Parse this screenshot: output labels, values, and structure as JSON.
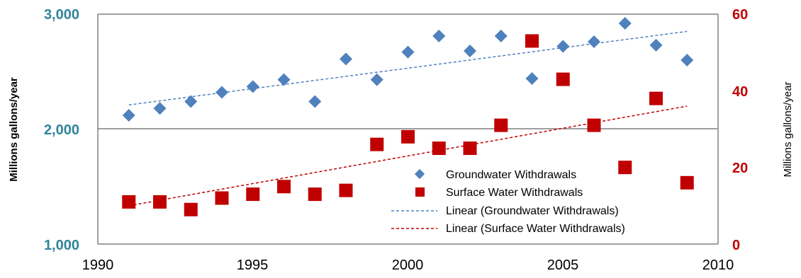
{
  "colors": {
    "groundwater": "#4F81BD",
    "surface": "#C00000",
    "left_axis_text": "#31849B",
    "right_axis_text": "#C00000",
    "gridline": "#7F7F7F",
    "axis": "#808080"
  },
  "chart_data": {
    "type": "scatter",
    "xlabel": "",
    "ylabel_left": "Millions gallons/year",
    "ylabel_right": "Millions gallons/year",
    "xlim": [
      1990,
      2010
    ],
    "x_ticks": [
      1990,
      1995,
      2000,
      2005,
      2010
    ],
    "x_tick_labels": [
      "1990",
      "1995",
      "2000",
      "2005",
      "2010"
    ],
    "ylim_left": [
      1000,
      3000
    ],
    "y_left_ticks": [
      1000,
      2000,
      3000
    ],
    "y_left_tick_labels": [
      "1,000",
      "2,000",
      "3,000"
    ],
    "ylim_right": [
      0,
      60
    ],
    "y_right_ticks": [
      0,
      20,
      40,
      60
    ],
    "y_right_tick_labels": [
      "0",
      "20",
      "40",
      "60"
    ],
    "grid": "horizontal major gridline at 2,000",
    "legend_position": "lower-right inside plot",
    "series": [
      {
        "name": "Groundwater Withdrawals",
        "axis": "left",
        "marker": "diamond",
        "x": [
          1991,
          1992,
          1993,
          1994,
          1995,
          1996,
          1997,
          1998,
          1999,
          2000,
          2001,
          2002,
          2003,
          2004,
          2005,
          2006,
          2007,
          2008,
          2009
        ],
        "y": [
          2120,
          2180,
          2240,
          2320,
          2370,
          2430,
          2240,
          2610,
          2430,
          2670,
          2810,
          2680,
          2810,
          2440,
          2720,
          2760,
          2920,
          2730,
          2600
        ]
      },
      {
        "name": "Surface Water Withdrawals",
        "axis": "right",
        "marker": "square",
        "x": [
          1991,
          1992,
          1993,
          1994,
          1995,
          1996,
          1997,
          1998,
          1999,
          2000,
          2001,
          2002,
          2003,
          2004,
          2005,
          2006,
          2007,
          2008,
          2009
        ],
        "y": [
          11,
          11,
          9,
          12,
          13,
          15,
          13,
          14,
          26,
          28,
          25,
          25,
          31,
          53,
          43,
          31,
          20,
          38,
          16
        ]
      }
    ],
    "trendlines": [
      {
        "name": "Linear (Groundwater Withdrawals)",
        "axis": "left",
        "x": [
          1991,
          2009
        ],
        "y": [
          2210,
          2850
        ]
      },
      {
        "name": "Linear (Surface Water Withdrawals)",
        "axis": "right",
        "x": [
          1991,
          2009
        ],
        "y": [
          10,
          36
        ]
      }
    ]
  }
}
